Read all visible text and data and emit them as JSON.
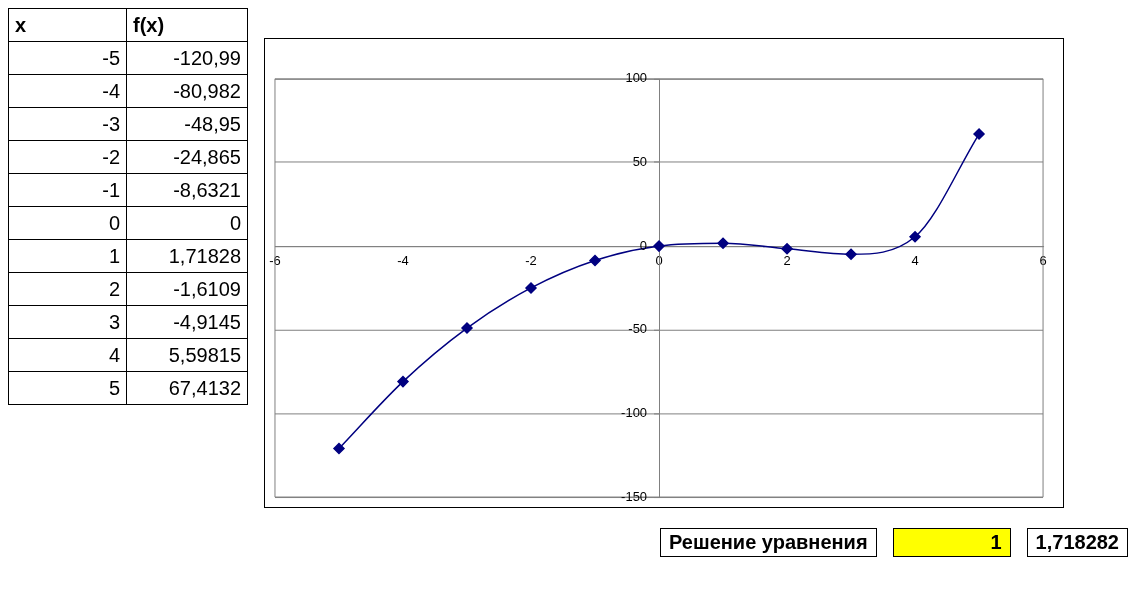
{
  "chart_data": {
    "type": "scatter",
    "x": [
      -5,
      -4,
      -3,
      -2,
      -1,
      0,
      1,
      2,
      3,
      4,
      5
    ],
    "series": [
      {
        "type": "line",
        "color": "#000080",
        "values": [
          -121,
          -81,
          -49,
          -25,
          -8.6,
          0,
          1.7,
          -1.6,
          -4.9,
          5.6,
          67
        ]
      }
    ],
    "xlim": [
      -6,
      6
    ],
    "xticks": [
      -6,
      -4,
      -2,
      0,
      2,
      4,
      6
    ],
    "ylim": [
      -150,
      100
    ],
    "yticks": [
      -150,
      -100,
      -50,
      0,
      50,
      100
    ],
    "grid": "y",
    "legend": false,
    "marker": "diamond",
    "line_style": "solid",
    "annotations": [
      "x",
      "f(x)",
      "-5",
      "-120,99",
      "-4",
      "-80,982",
      "-3",
      "-48,95",
      "-2",
      "-24,865",
      "-1",
      "-8,6321",
      "0",
      "0",
      "1",
      "1,71828",
      "2",
      "-1,6109",
      "3",
      "-4,9145",
      "4",
      "5,59815",
      "5",
      "67,4132",
      "Решение уравнения",
      "1",
      "1,718282"
    ]
  }
}
